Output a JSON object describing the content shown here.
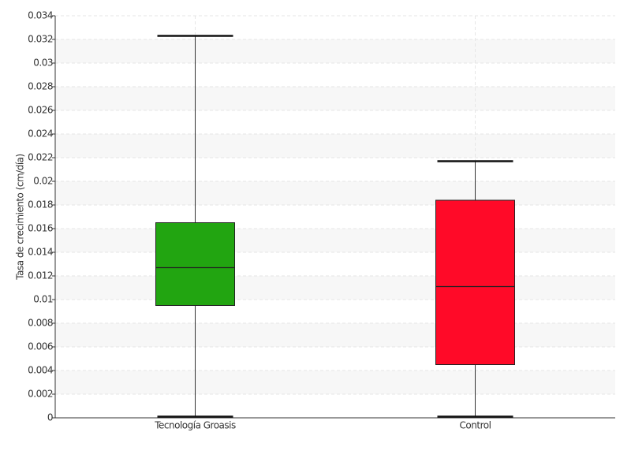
{
  "chart_data": {
    "type": "box",
    "y_label": "Tasa de crecimiento (cm/día)",
    "categories": [
      "Tecnología Groasis",
      "Control"
    ],
    "colors": [
      "#22a511",
      "#ff0a28"
    ],
    "boxes": [
      {
        "min": 0.0001,
        "q1": 0.0095,
        "median": 0.0127,
        "q3": 0.0165,
        "max": 0.0323
      },
      {
        "min": 0.0001,
        "q1": 0.0045,
        "median": 0.0111,
        "q3": 0.0184,
        "max": 0.0217
      }
    ],
    "ylim": [
      0,
      0.034
    ],
    "yticks": [
      0,
      0.002,
      0.004,
      0.006,
      0.008,
      0.01,
      0.012,
      0.014,
      0.016,
      0.018,
      0.02,
      0.022,
      0.024,
      0.026,
      0.028,
      0.03,
      0.032,
      0.034
    ],
    "grid": true
  }
}
